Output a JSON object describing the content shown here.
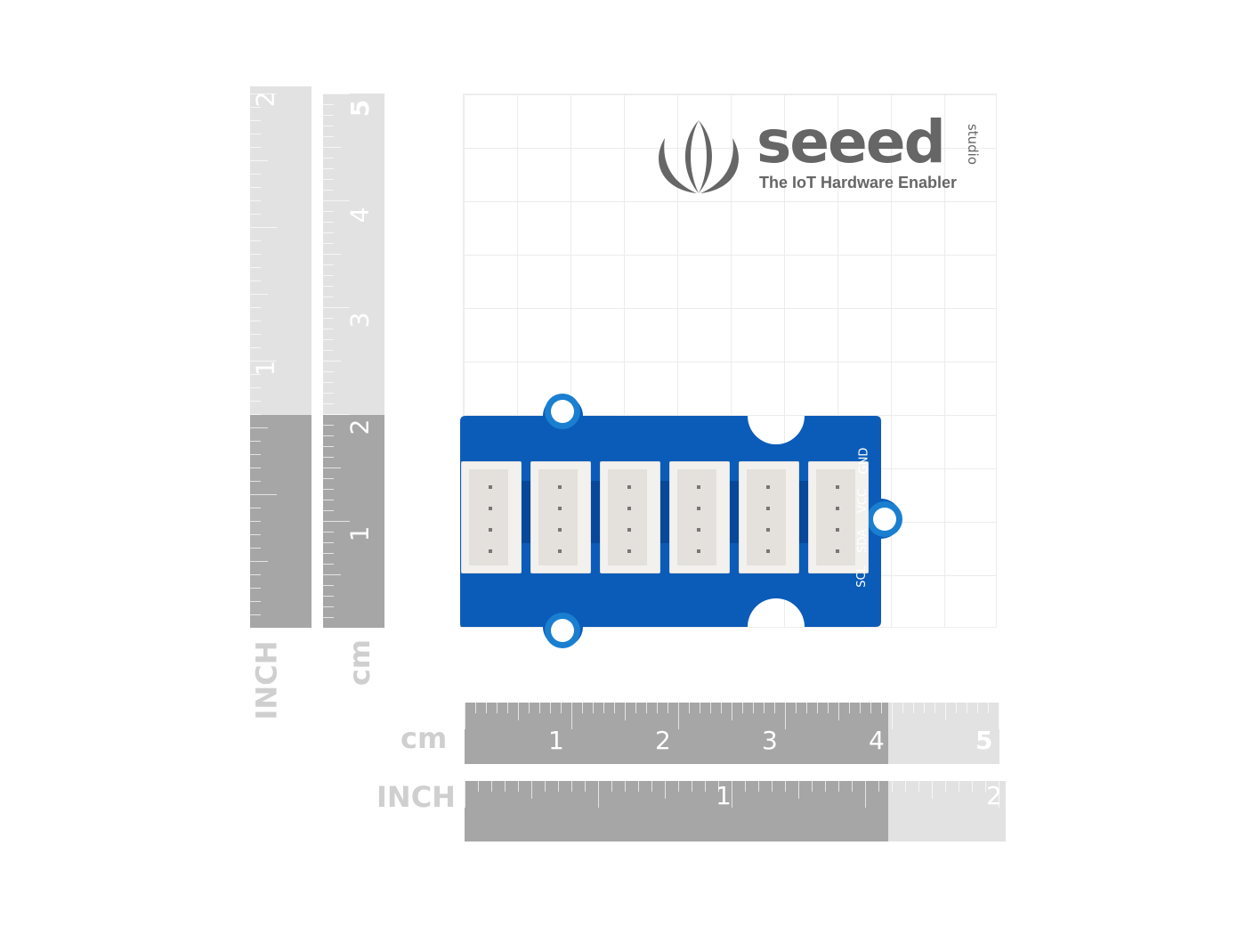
{
  "logo": {
    "brand": "seeed",
    "sub": "studio",
    "tagline": "The IoT Hardware Enabler",
    "color": "#666666"
  },
  "rulers": {
    "vertical_inch": {
      "unit": "INCH",
      "labels": [
        "2",
        "1"
      ]
    },
    "vertical_cm": {
      "unit": "cm",
      "labels": [
        "5",
        "4",
        "3",
        "2",
        "1"
      ]
    },
    "horizontal_cm": {
      "unit": "cm",
      "labels": [
        "1",
        "2",
        "3",
        "4",
        "5"
      ]
    },
    "horizontal_inch": {
      "unit": "INCH",
      "labels": [
        "1",
        "2"
      ]
    },
    "dark_color": "#a6a6a6",
    "light_color": "#e2e2e2"
  },
  "board": {
    "color": "#0b5cb8",
    "connector_count": 6,
    "silkscreen": [
      "SCL",
      "SDA",
      "VCC",
      "GND"
    ]
  }
}
